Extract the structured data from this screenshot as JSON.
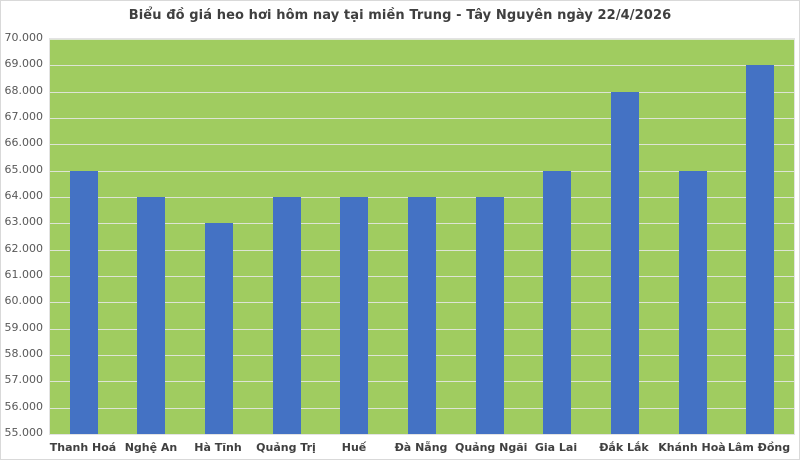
{
  "chart_data": {
    "type": "bar",
    "title": "Biểu đồ giá heo hơi hôm nay tại miền Trung - Tây Nguyên ngày 22/4/2026",
    "categories": [
      "Thanh Hoá",
      "Nghệ An",
      "Hà Tĩnh",
      "Quảng Trị",
      "Huế",
      "Đà Nẵng",
      "Quảng Ngãi",
      "Gia Lai",
      "Đắk Lắk",
      "Khánh Hoà",
      "Lâm Đồng"
    ],
    "values": [
      65000,
      64000,
      63000,
      64000,
      64000,
      64000,
      64000,
      65000,
      68000,
      65000,
      69000
    ],
    "xlabel": "",
    "ylabel": "",
    "ylim": [
      55000,
      70000
    ],
    "ytick_step": 1000,
    "ytick_labels": [
      "55.000",
      "56.000",
      "57.000",
      "58.000",
      "59.000",
      "60.000",
      "61.000",
      "62.000",
      "63.000",
      "64.000",
      "65.000",
      "66.000",
      "67.000",
      "68.000",
      "69.000",
      "70.000"
    ],
    "grid": true,
    "legend": "none",
    "colors": {
      "bar": "#4472c4",
      "plot_background": "#a0cc60",
      "gridline": "#dde4d4",
      "title_text": "#3f3f3f",
      "axis_text": "#595959",
      "category_text": "#404040",
      "chart_border": "#d9d9d9"
    }
  }
}
